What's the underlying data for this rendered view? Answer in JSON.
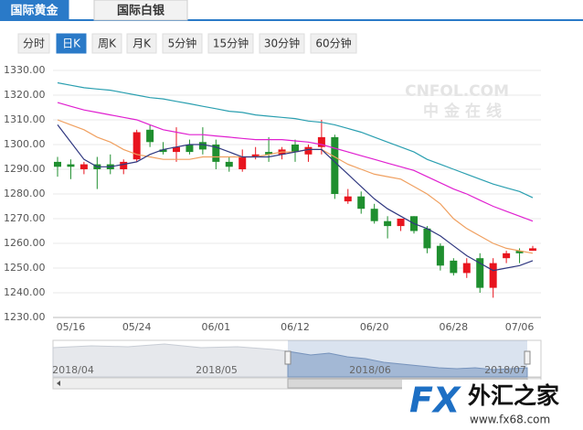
{
  "tabs": [
    "国际黄金",
    "国际白银"
  ],
  "active_tab": 0,
  "periods": [
    "分时",
    "日K",
    "周K",
    "月K",
    "5分钟",
    "15分钟",
    "30分钟",
    "60分钟"
  ],
  "active_period": 1,
  "watermark": {
    "brand": "CNFOL.COM",
    "name": "中金在线"
  },
  "chart_data": {
    "type": "candlestick",
    "categories": [
      null,
      "05/16",
      null,
      null,
      null,
      null,
      "05/24",
      null,
      null,
      null,
      null,
      null,
      "06/01",
      null,
      null,
      null,
      null,
      null,
      "06/12",
      null,
      null,
      null,
      null,
      null,
      "06/20",
      null,
      null,
      null,
      null,
      null,
      "06/28",
      null,
      null,
      null,
      null,
      "07/06",
      null
    ],
    "open": [
      1293,
      1292,
      1290,
      1292,
      1292,
      1290,
      1294,
      1306,
      1298,
      1297,
      1300,
      1301,
      1300,
      1293,
      1290,
      1295,
      1297,
      1296,
      1300,
      1296,
      1299,
      1303,
      1277,
      1279,
      1274,
      1269,
      1267,
      1271,
      1266,
      1259,
      1253,
      1248,
      1254,
      1242,
      1254,
      1257,
      1257
    ],
    "high": [
      1295,
      1294,
      1293,
      1295,
      1296,
      1294,
      1306,
      1308,
      1301,
      1307,
      1302,
      1307,
      1302,
      1295,
      1298,
      1299,
      1303,
      1299,
      1302,
      1300,
      1310,
      1304,
      1282,
      1281,
      1276,
      1271,
      1270,
      1271,
      1267,
      1260,
      1254,
      1254,
      1256,
      1254,
      1257,
      1258,
      1259
    ],
    "low": [
      1287,
      1286,
      1288,
      1282,
      1288,
      1288,
      1293,
      1299,
      1296,
      1293,
      1296,
      1296,
      1290,
      1289,
      1289,
      1294,
      1293,
      1294,
      1293,
      1293,
      1296,
      1278,
      1276,
      1272,
      1268,
      1262,
      1265,
      1264,
      1256,
      1249,
      1247,
      1246,
      1240,
      1238,
      1252,
      1252,
      1257
    ],
    "close": [
      1291,
      1291,
      1292,
      1290,
      1290,
      1293,
      1305,
      1301,
      1297,
      1299,
      1297,
      1298,
      1293,
      1291,
      1295,
      1296,
      1296,
      1298,
      1297,
      1299,
      1303,
      1280,
      1279,
      1274,
      1269,
      1267,
      1270,
      1265,
      1258,
      1251,
      1248,
      1252,
      1242,
      1252,
      1256,
      1256,
      1258
    ],
    "up_color": "#e8141e",
    "down_color": "#1f8f2f",
    "lines": [
      {
        "color": "#2a9fb0",
        "values": [
          1325,
          1324,
          1323,
          1322.5,
          1322,
          1321,
          1320,
          1319,
          1318.5,
          1317.5,
          1316.5,
          1315.5,
          1314.5,
          1313.5,
          1313,
          1312,
          1311.5,
          1311,
          1310.5,
          1309.5,
          1309,
          1308,
          1306.5,
          1305,
          1303,
          1301,
          1299,
          1297,
          1294,
          1292,
          1290,
          1288,
          1286,
          1284,
          1282.5,
          1281,
          1278.5
        ]
      },
      {
        "color": "#e020d0",
        "values": [
          1317,
          1315.5,
          1314,
          1313,
          1312,
          1311,
          1310,
          1308,
          1306,
          1305,
          1304,
          1304,
          1303.5,
          1303,
          1302.5,
          1302,
          1302,
          1302,
          1301.5,
          1301,
          1300,
          1298.5,
          1297,
          1295.5,
          1294,
          1292.5,
          1291,
          1289.5,
          1287,
          1284.5,
          1282,
          1280,
          1277.5,
          1275,
          1273,
          1271,
          1269
        ]
      },
      {
        "color": "#f0a060",
        "values": [
          1310,
          1308,
          1306,
          1303,
          1301,
          1298,
          1296,
          1295,
          1294,
          1294,
          1294,
          1295,
          1295,
          1295,
          1295,
          1295,
          1296,
          1297,
          1297,
          1298,
          1298,
          1295,
          1292,
          1290,
          1288,
          1287,
          1286,
          1283,
          1280,
          1276,
          1270,
          1266,
          1263,
          1260,
          1258,
          1257,
          1256
        ]
      },
      {
        "color": "#303880",
        "values": [
          1308,
          1301,
          1294,
          1291,
          1291,
          1292,
          1293,
          1296,
          1298,
          1299,
          1300,
          1300,
          1299,
          1297,
          1295,
          1295,
          1295,
          1296,
          1297,
          1298,
          1298,
          1293,
          1288,
          1283,
          1278,
          1274,
          1271,
          1268,
          1266,
          1263,
          1259,
          1255,
          1252,
          1249,
          1250,
          1251,
          1253
        ]
      }
    ],
    "ylim": [
      1230,
      1330
    ],
    "yticks": [
      {
        "value": 1230,
        "label": "1230.00"
      },
      {
        "value": 1240,
        "label": "1240.00"
      },
      {
        "value": 1250,
        "label": "1250.00"
      },
      {
        "value": 1260,
        "label": "1260.00"
      },
      {
        "value": 1270,
        "label": "1270.00"
      },
      {
        "value": 1280,
        "label": "1280.00"
      },
      {
        "value": 1290,
        "label": "1290.00"
      },
      {
        "value": 1300,
        "label": "1300.00"
      },
      {
        "value": 1310,
        "label": "1310.00"
      },
      {
        "value": 1320,
        "label": "1320.00"
      },
      {
        "value": 1330,
        "label": "1330.00"
      }
    ],
    "grid": true
  },
  "navigator": {
    "labels": [
      "2018/04",
      "2018/05",
      "2018/06",
      "2018/07"
    ]
  },
  "logo": {
    "mark": "FX",
    "name": "外汇之家",
    "url": "www.fx68.com"
  }
}
